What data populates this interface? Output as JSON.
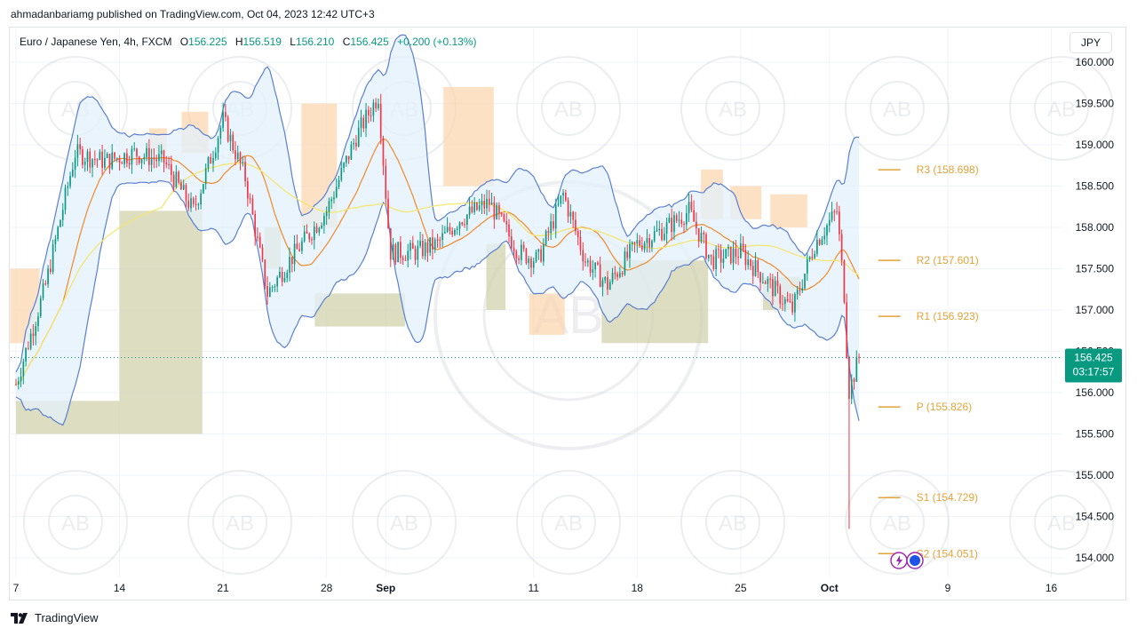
{
  "header": {
    "publish_line": "ahmadanbariamg published on TradingView.com, Oct 04, 2023 12:42 UTC+3"
  },
  "legend": {
    "symbol": "Euro / Japanese Yen, 4h, FXCM",
    "open_label": "O",
    "open": "156.225",
    "high_label": "H",
    "high": "156.519",
    "low_label": "L",
    "low": "156.210",
    "close_label": "C",
    "close": "156.425",
    "change": "+0.200 (+0.13%)"
  },
  "currency_button": "JPY",
  "footer": {
    "brand": "TradingView"
  },
  "colors": {
    "up": "#089981",
    "down": "#f23645",
    "band": "#5b7fd1",
    "band_fill": "#e3f0fb",
    "ma_orange": "#f0892b",
    "ma_yellow": "#f5e56b",
    "pivot": "#e2a33a",
    "supply_zone": "#fbd4ad",
    "demand_zone": "#cfcfa8",
    "last_price": "#089981"
  },
  "price_axis": {
    "ticks": [
      "160.000",
      "159.500",
      "159.000",
      "158.500",
      "158.000",
      "157.500",
      "157.000",
      "156.500",
      "156.000",
      "155.500",
      "155.000",
      "154.500",
      "154.000"
    ]
  },
  "time_axis": {
    "labels": [
      "7",
      "14",
      "21",
      "28",
      "Sep",
      "11",
      "18",
      "25",
      "Oct",
      "9",
      "16"
    ]
  },
  "last_price": {
    "price": "156.425",
    "countdown": "03:17:57"
  },
  "chart_data": {
    "type": "candlestick",
    "symbol": "Euro / Japanese Yen, 4h, FXCM",
    "ylim": [
      153.8,
      160.05
    ],
    "pivots": [
      {
        "label": "R3 (158.698)",
        "value": 158.698
      },
      {
        "label": "R2 (157.601)",
        "value": 157.601
      },
      {
        "label": "R1 (156.923)",
        "value": 156.923
      },
      {
        "label": "P (155.826)",
        "value": 155.826
      },
      {
        "label": "S1 (154.729)",
        "value": 154.729
      },
      {
        "label": "S2 (154.051)",
        "value": 154.051
      }
    ],
    "key_closes_approx": [
      {
        "time": "Aug 7",
        "close": 156.1
      },
      {
        "time": "Aug 10",
        "close": 158.9
      },
      {
        "time": "Aug 21",
        "close": 159.2
      },
      {
        "time": "Aug 24",
        "close": 157.2
      },
      {
        "time": "Aug 31",
        "close": 159.6
      },
      {
        "time": "Sep 1",
        "close": 157.7
      },
      {
        "time": "Sep 13",
        "close": 158.4
      },
      {
        "time": "Sep 15",
        "close": 157.0
      },
      {
        "time": "Sep 21",
        "close": 158.2
      },
      {
        "time": "Sep 29",
        "close": 157.0
      },
      {
        "time": "Oct 2",
        "close": 158.0
      },
      {
        "time": "Oct 3",
        "close": 156.0
      },
      {
        "time": "Oct 4",
        "close": 156.425
      }
    ],
    "intraday_low_oct3": 154.35
  }
}
